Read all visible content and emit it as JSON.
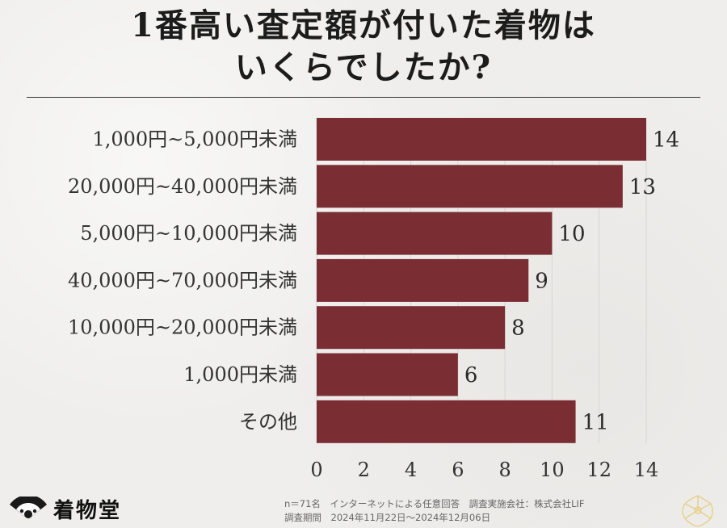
{
  "title_line1": "1番高い査定額が付いた着物は",
  "title_line2": "いくらでしたか?",
  "chart_data": {
    "type": "bar",
    "orientation": "horizontal",
    "categories": [
      "1,000円~5,000円未満",
      "20,000円~40,000円未満",
      "5,000円~10,000円未満",
      "40,000円~70,000円未満",
      "10,000円~20,000円未満",
      "1,000円未満",
      "その他"
    ],
    "values": [
      14,
      13,
      10,
      9,
      8,
      6,
      11
    ],
    "xticks": [
      0,
      2,
      4,
      6,
      8,
      10,
      12,
      14
    ],
    "xlim": [
      0,
      14
    ],
    "bar_color": "#7a2e33",
    "grid": "vertical",
    "title": "1番高い査定額が付いた着物はいくらでしたか?",
    "xlabel": "",
    "ylabel": ""
  },
  "logo": {
    "text": "着物堂",
    "icon": "fan-logo-icon"
  },
  "footnote": {
    "line1": "n＝71名　インターネットによる任意回答　調査実施会社：株式会社LIF",
    "line2": "調査期間　2024年11月22日～2024年12月06日"
  }
}
